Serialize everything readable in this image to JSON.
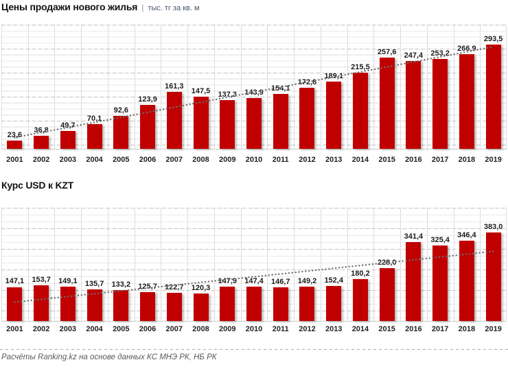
{
  "charts": [
    {
      "title": "Цены продажи нового жилья",
      "title_separator": "|",
      "subtitle": "тыс. тг за кв. м"
    },
    {
      "title": "Курс USD к KZT"
    }
  ],
  "chart_data": [
    {
      "type": "bar",
      "title": "Цены продажи нового жилья",
      "unit": "тыс. тг за кв. м",
      "categories": [
        "2001",
        "2002",
        "2003",
        "2004",
        "2005",
        "2006",
        "2007",
        "2008",
        "2009",
        "2010",
        "2011",
        "2012",
        "2013",
        "2014",
        "2015",
        "2016",
        "2017",
        "2018",
        "2019"
      ],
      "values": [
        23.6,
        36.8,
        49.7,
        70.1,
        92.6,
        123.9,
        161.3,
        147.5,
        137.3,
        143.9,
        154.1,
        172.8,
        189.1,
        215.5,
        257.6,
        247.4,
        253.2,
        266.9,
        293.5
      ],
      "value_labels": [
        "23,6",
        "36,8",
        "49,7",
        "70,1",
        "92,6",
        "123,9",
        "161,3",
        "147,5",
        "137,3",
        "143,9",
        "154,1",
        "172,8",
        "189,1",
        "215,5",
        "257,6",
        "247,4",
        "253,2",
        "266,9",
        "293,5"
      ],
      "ylim": [
        0,
        350
      ],
      "grid": true,
      "legend": false,
      "trendline": "linear-dotted",
      "decimal_separator": ","
    },
    {
      "type": "bar",
      "title": "Курс USD к KZT",
      "unit": "",
      "categories": [
        "2001",
        "2002",
        "2003",
        "2004",
        "2005",
        "2006",
        "2007",
        "2008",
        "2009",
        "2010",
        "2011",
        "2012",
        "2013",
        "2014",
        "2015",
        "2016",
        "2017",
        "2018",
        "2019"
      ],
      "values": [
        147.1,
        153.7,
        149.1,
        135.7,
        133.2,
        125.7,
        122.7,
        120.3,
        147.9,
        147.4,
        146.7,
        149.2,
        152.4,
        180.2,
        228.0,
        341.4,
        325.4,
        346.4,
        383.0
      ],
      "value_labels": [
        "147,1",
        "153,7",
        "149,1",
        "135,7",
        "133,2",
        "125,7",
        "122,7",
        "120,3",
        "147,9",
        "147,4",
        "146,7",
        "149,2",
        "152,4",
        "180,2",
        "228,0",
        "341,4",
        "325,4",
        "346,4",
        "383,0"
      ],
      "ylim": [
        0,
        490
      ],
      "grid": true,
      "legend": false,
      "trendline": "linear-dotted",
      "decimal_separator": ","
    }
  ],
  "footer": {
    "note": "Расчёты Ranking.kz на основе данных КС МНЭ РК, НБ РК"
  },
  "colors": {
    "bar": "#c00000",
    "title_text": "#111111",
    "subtitle_text": "#44546a",
    "axis_label": "#1f1f1f",
    "value_label": "#1a1a1a",
    "minor_grid": "#eaeaea",
    "major_grid": "#c2c2c2",
    "col_sep": "#dcdcdc",
    "axis_line": "#c9c9c9",
    "trend": "#6f6f6f",
    "footer_text": "#595959",
    "sep_dash": "#ababab"
  }
}
